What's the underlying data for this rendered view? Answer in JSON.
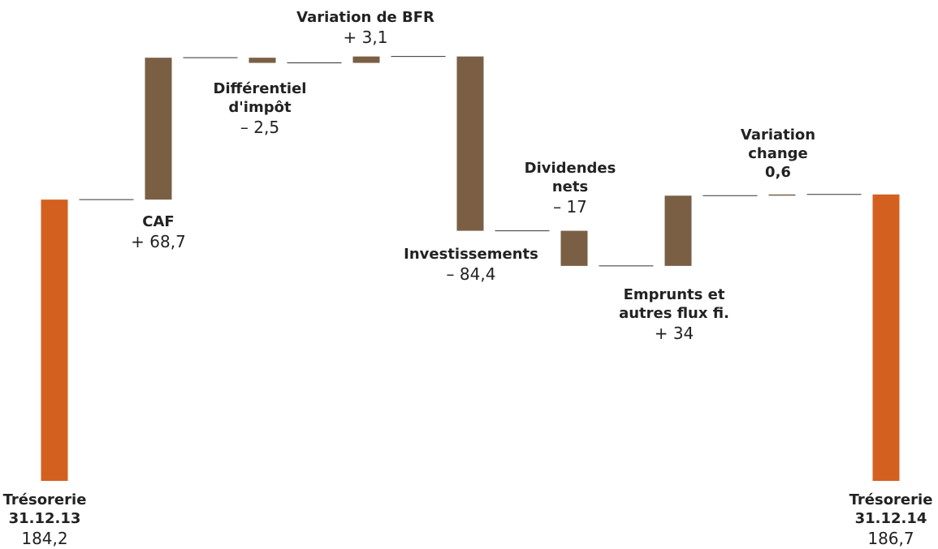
{
  "chart_data": {
    "type": "waterfall",
    "categories": [
      "Trésorerie 31.12.13",
      "CAF",
      "Différentiel d'impôt",
      "Variation de BFR",
      "Investissements",
      "Dividendes nets",
      "Emprunts et autres flux fi.",
      "Variation change",
      "Trésorerie 31.12.14"
    ],
    "values": [
      184.2,
      68.7,
      -2.5,
      3.1,
      -84.4,
      -17,
      34,
      0.6,
      186.7
    ],
    "value_labels": [
      "184,2",
      "+ 68,7",
      "– 2,5",
      "+ 3,1",
      "– 84,4",
      "– 17",
      "+ 34",
      "0,6",
      "186,7"
    ],
    "totals": [
      true,
      false,
      false,
      false,
      false,
      false,
      false,
      false,
      true
    ],
    "total_color": "#d4601f",
    "delta_color": "#7a5f45",
    "ylim": [
      48,
      262
    ]
  }
}
